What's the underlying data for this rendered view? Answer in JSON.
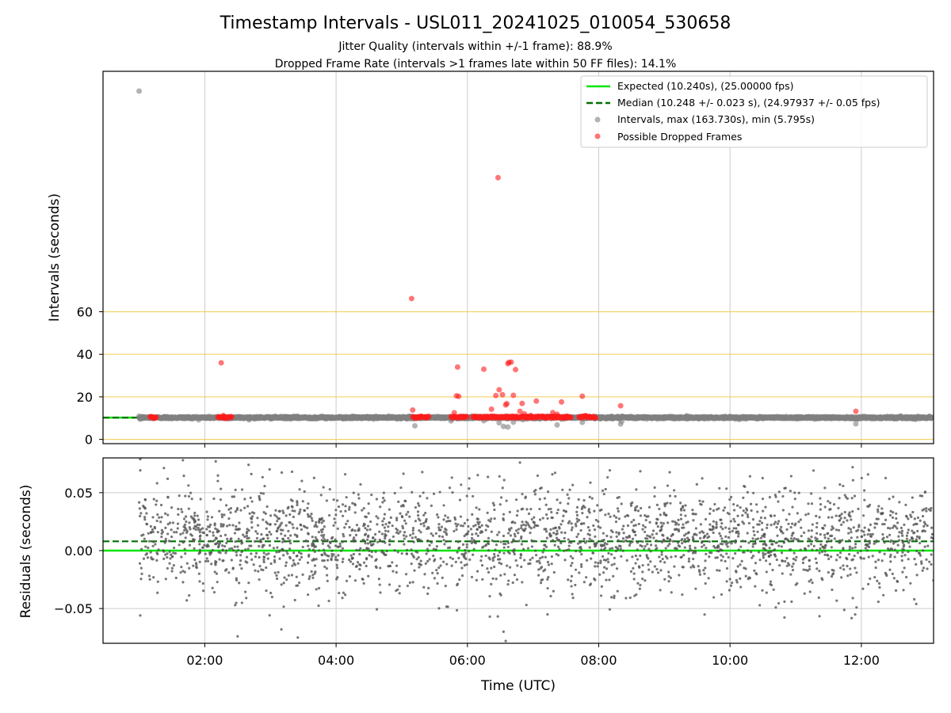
{
  "figure": {
    "title": "Timestamp Intervals - USL011_20241025_010054_530658",
    "subtitle_1": "Jitter Quality (intervals within +/-1 frame): 88.9%",
    "subtitle_2": "Dropped Frame Rate (intervals >1 frames late within 50 FF files): 14.1%"
  },
  "colors": {
    "expected": "#00e600",
    "median": "#007000",
    "intervals": "#808080",
    "dropped": "#ff1a1a",
    "threshold": "#f5c542",
    "grid": "#cccccc",
    "residuals": "#555555"
  },
  "chart_data": [
    {
      "type": "scatter",
      "panel": "intervals",
      "xlabel": "",
      "ylabel": "Intervals (seconds)",
      "xlim": [
        "00:27",
        "13:06"
      ],
      "ylim": [
        -2,
        173
      ],
      "yticks": [
        "0",
        "20",
        "40",
        "60"
      ],
      "ytick_values": [
        0,
        20,
        40,
        60
      ],
      "threshold_lines": [
        0,
        20,
        40,
        60
      ],
      "grid": "vertical",
      "legend_placement": "top-right",
      "legend": [
        "Expected (10.240s), (25.00000 fps)",
        "Median (10.248 +/- 0.023 s), (24.97937 +/- 0.05 fps)",
        "Intervals, max (163.730s), min (5.795s)",
        "Possible Dropped Frames"
      ],
      "expected_value": 10.24,
      "median_value": 10.248,
      "x_range": [
        "01:00",
        "13:05"
      ],
      "baseline_value": 10.24,
      "outliers": [
        {
          "x": "01:00",
          "y": 163.7
        },
        {
          "x": "01:01",
          "y": 9.5
        },
        {
          "x": "05:12",
          "y": 6.4
        },
        {
          "x": "05:45",
          "y": 8.7
        },
        {
          "x": "06:15",
          "y": 8.8
        },
        {
          "x": "06:29",
          "y": 7.8
        },
        {
          "x": "06:33",
          "y": 6.1
        },
        {
          "x": "06:37",
          "y": 5.8
        },
        {
          "x": "06:42",
          "y": 8.1
        },
        {
          "x": "07:22",
          "y": 6.8
        },
        {
          "x": "07:45",
          "y": 8.0
        },
        {
          "x": "08:20",
          "y": 7.2
        },
        {
          "x": "08:21",
          "y": 8.5
        },
        {
          "x": "11:55",
          "y": 7.3
        }
      ],
      "dropped_frames": [
        {
          "x": "01:13",
          "y": 10.2
        },
        {
          "x": "02:15",
          "y": 36.0
        },
        {
          "x": "02:17",
          "y": 11.2
        },
        {
          "x": "02:18",
          "y": 9.8
        },
        {
          "x": "05:09",
          "y": 66.2
        },
        {
          "x": "05:10",
          "y": 13.8
        },
        {
          "x": "05:48",
          "y": 12.5
        },
        {
          "x": "05:50",
          "y": 20.5
        },
        {
          "x": "05:51",
          "y": 34.0
        },
        {
          "x": "05:52",
          "y": 20.2
        },
        {
          "x": "06:15",
          "y": 33.0
        },
        {
          "x": "06:22",
          "y": 14.2
        },
        {
          "x": "06:26",
          "y": 20.6
        },
        {
          "x": "06:28",
          "y": 123.0
        },
        {
          "x": "06:29",
          "y": 23.3
        },
        {
          "x": "06:32",
          "y": 21.0
        },
        {
          "x": "06:35",
          "y": 16.2
        },
        {
          "x": "06:36",
          "y": 16.8
        },
        {
          "x": "06:37",
          "y": 35.6
        },
        {
          "x": "06:38",
          "y": 36.2
        },
        {
          "x": "06:40",
          "y": 36.3
        },
        {
          "x": "06:42",
          "y": 20.7
        },
        {
          "x": "06:44",
          "y": 32.8
        },
        {
          "x": "06:48",
          "y": 13.2
        },
        {
          "x": "06:50",
          "y": 16.9
        },
        {
          "x": "06:52",
          "y": 12.0
        },
        {
          "x": "06:58",
          "y": 11.2
        },
        {
          "x": "07:03",
          "y": 18.0
        },
        {
          "x": "07:18",
          "y": 12.6
        },
        {
          "x": "07:22",
          "y": 11.8
        },
        {
          "x": "07:26",
          "y": 17.6
        },
        {
          "x": "07:45",
          "y": 20.3
        },
        {
          "x": "07:48",
          "y": 11.2
        },
        {
          "x": "08:20",
          "y": 15.8
        },
        {
          "x": "11:55",
          "y": 13.2
        }
      ],
      "dropped_clusters": [
        {
          "from": "01:10",
          "to": "01:16",
          "y": 10.2
        },
        {
          "from": "02:12",
          "to": "02:25",
          "y": 10.2
        },
        {
          "from": "05:10",
          "to": "05:25",
          "y": 10.3
        },
        {
          "from": "05:45",
          "to": "06:00",
          "y": 10.3
        },
        {
          "from": "06:05",
          "to": "07:35",
          "y": 10.3
        },
        {
          "from": "07:42",
          "to": "07:58",
          "y": 10.3
        }
      ]
    },
    {
      "type": "scatter",
      "panel": "residuals",
      "xlabel": "Time (UTC)",
      "ylabel": "Residuals (seconds)",
      "xlim": [
        "00:27",
        "13:06"
      ],
      "ylim": [
        -0.08,
        0.08
      ],
      "xticks": [
        "02:00",
        "04:00",
        "06:00",
        "08:00",
        "10:00",
        "12:00"
      ],
      "yticks": [
        "0.05",
        "0.00",
        "−0.05"
      ],
      "ytick_values": [
        0.05,
        0.0,
        -0.05
      ],
      "grid": "both",
      "expected_residual": 0.0,
      "median_residual": 0.008,
      "x_range": [
        "01:00",
        "13:06"
      ],
      "point_count": 2600,
      "center": 0.01,
      "spread_std": 0.022,
      "extreme_points": [
        {
          "x": "01:01",
          "y": 0.079
        },
        {
          "x": "01:40",
          "y": 0.078
        },
        {
          "x": "02:10",
          "y": 0.077
        },
        {
          "x": "02:40",
          "y": 0.074
        },
        {
          "x": "06:48",
          "y": 0.076
        },
        {
          "x": "11:52",
          "y": 0.072
        },
        {
          "x": "02:30",
          "y": -0.074
        },
        {
          "x": "03:25",
          "y": -0.075
        },
        {
          "x": "06:35",
          "y": -0.078
        },
        {
          "x": "03:10",
          "y": -0.068
        },
        {
          "x": "06:33",
          "y": -0.07
        },
        {
          "x": "01:01",
          "y": -0.056
        }
      ]
    }
  ]
}
